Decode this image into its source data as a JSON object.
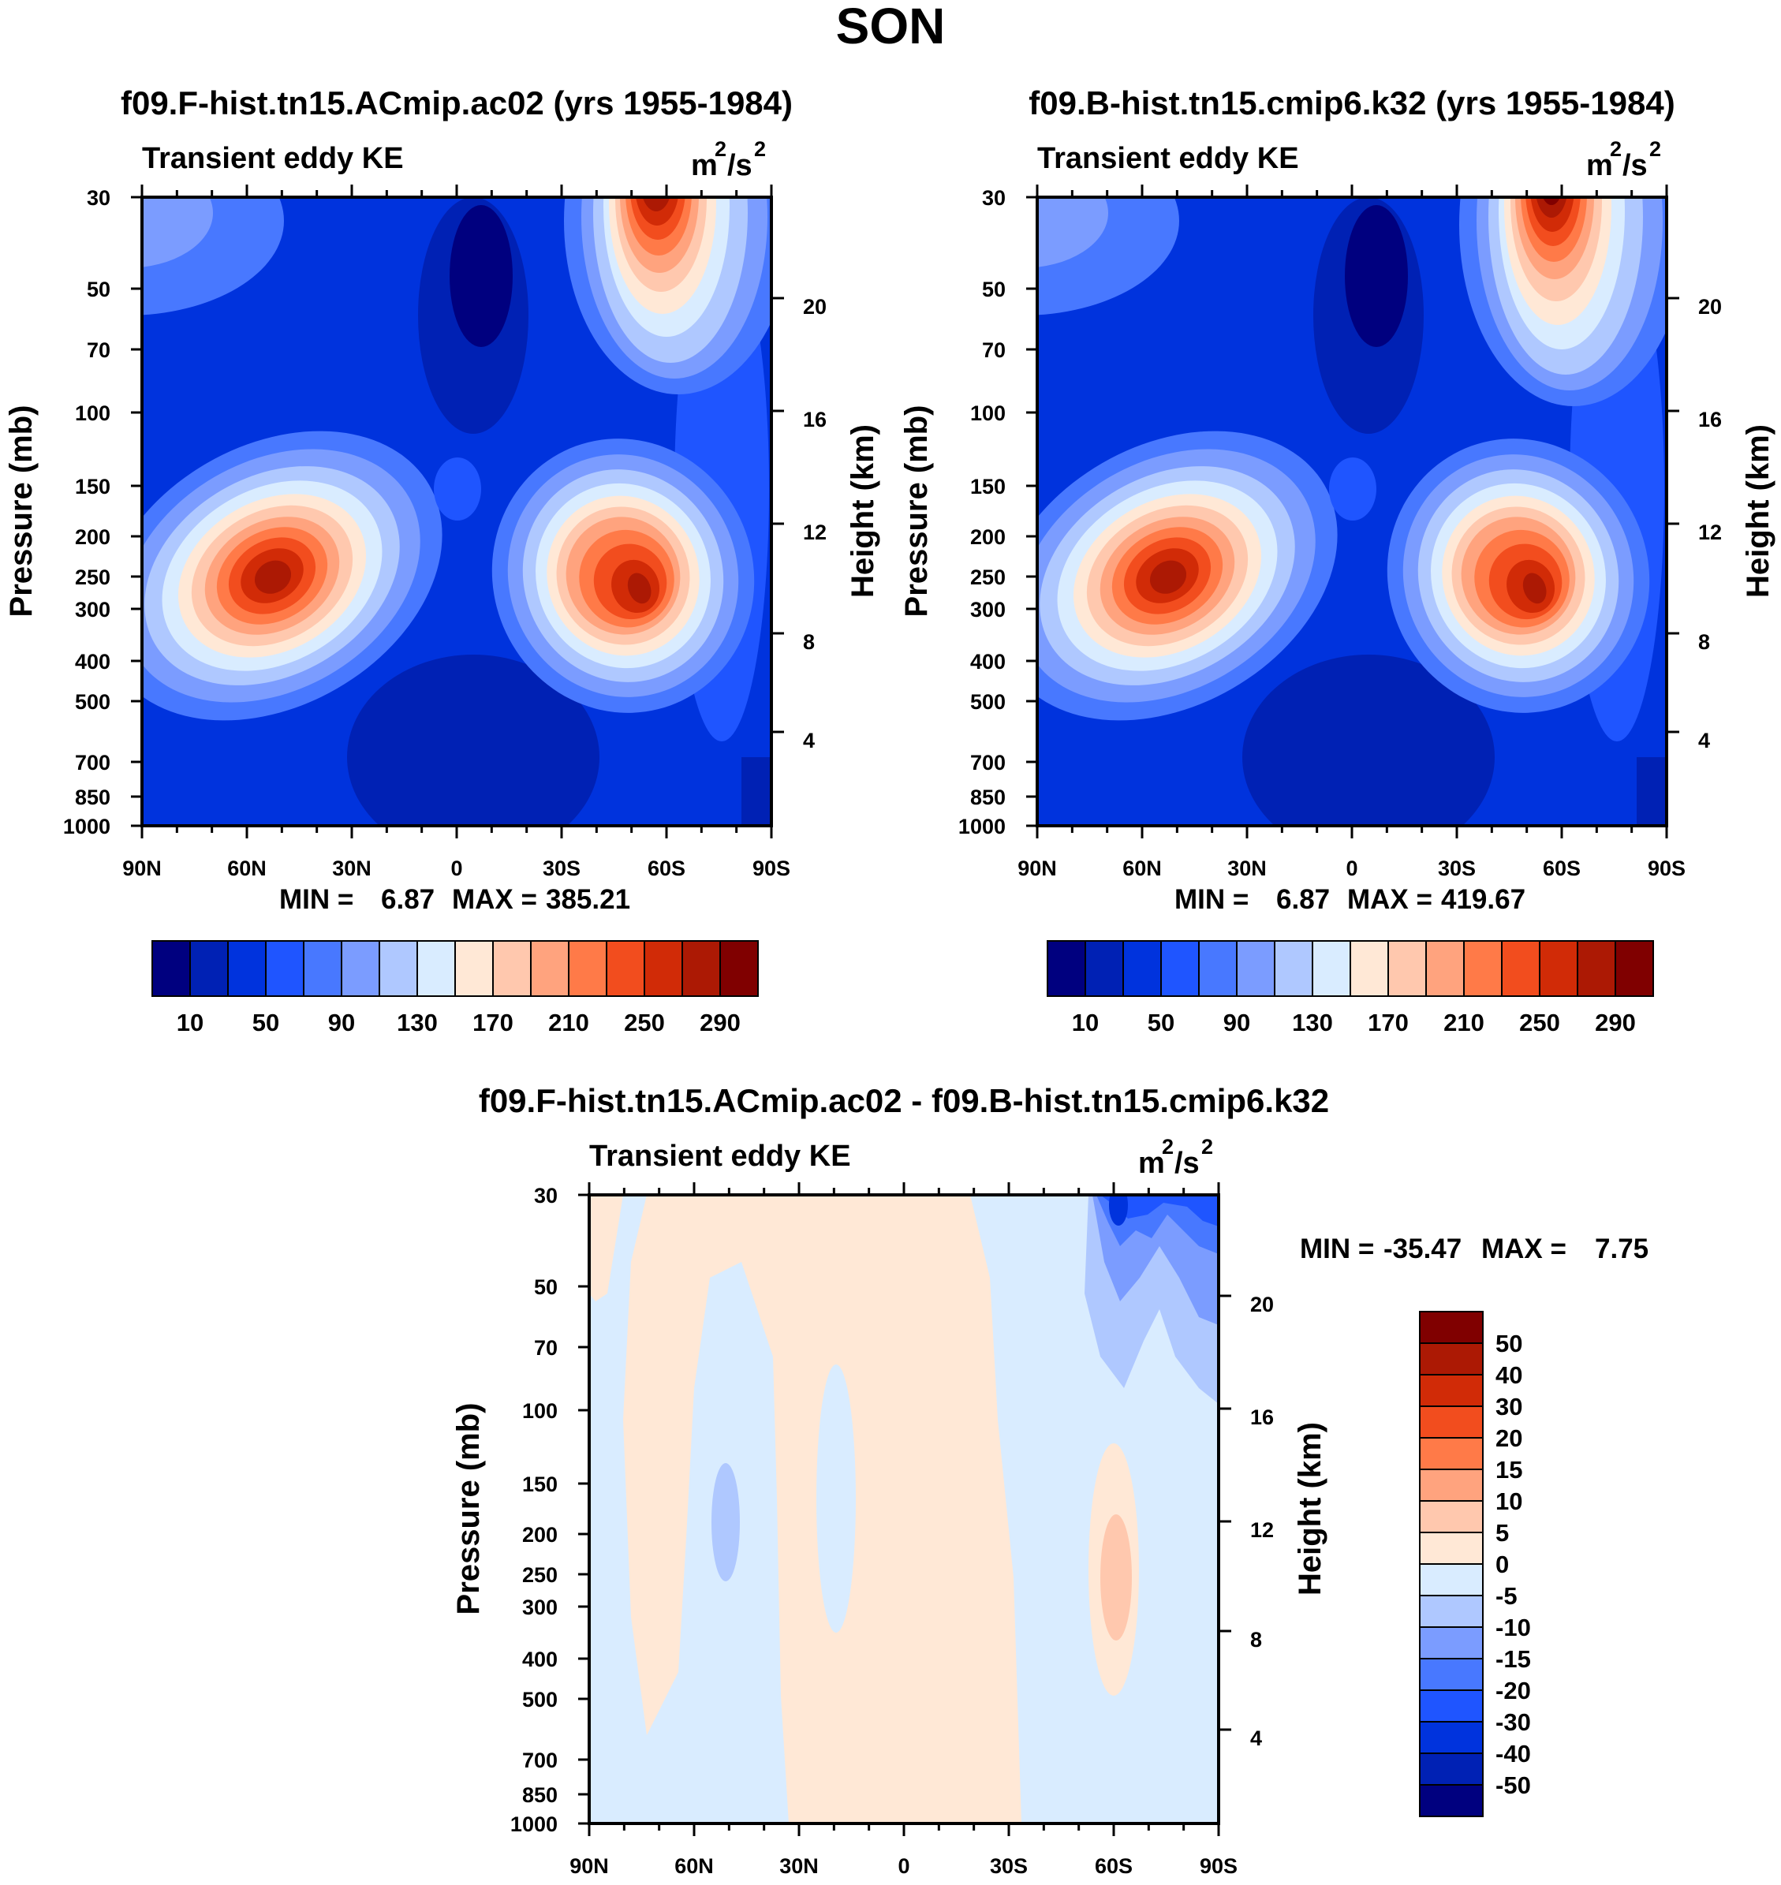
{
  "title": "SON",
  "chart_data": [
    {
      "id": "panel1",
      "type": "contour",
      "title": "f09.F-hist.tn15.ACmip.ac02 (yrs 1955-1984)",
      "left_label": "Transient eddy KE",
      "right_label": "m",
      "units_sup": "2",
      "units_mid": "/s",
      "ylabel": "Pressure (mb)",
      "y2label": "Height (km)",
      "x_ticks": [
        "90N",
        "60N",
        "30N",
        "0",
        "30S",
        "60S",
        "90S"
      ],
      "p_ticks": [
        "30",
        "50",
        "70",
        "100",
        "150",
        "200",
        "250",
        "300",
        "400",
        "500",
        "700",
        "850",
        "1000"
      ],
      "h_ticks": [
        "20",
        "16",
        "12",
        "8",
        "4"
      ],
      "min_label": "MIN =",
      "min_value": "6.87",
      "max_label": "MAX =",
      "max_value": "385.21",
      "colorbar_labels": [
        "10",
        "50",
        "90",
        "130",
        "170",
        "210",
        "250",
        "290"
      ],
      "features": [
        {
          "lat": 50,
          "p": 270,
          "peak": 340,
          "desc": "NH jet maximum"
        },
        {
          "lat": -48,
          "p": 290,
          "peak": 360,
          "desc": "SH jet maximum"
        },
        {
          "lat": -62,
          "p": 30,
          "peak": 385,
          "desc": "SH stratospheric maximum"
        }
      ]
    },
    {
      "id": "panel2",
      "type": "contour",
      "title": "f09.B-hist.tn15.cmip6.k32 (yrs 1955-1984)",
      "left_label": "Transient eddy KE",
      "right_label": "m",
      "units_sup": "2",
      "units_mid": "/s",
      "ylabel": "Pressure (mb)",
      "y2label": "Height (km)",
      "x_ticks": [
        "90N",
        "60N",
        "30N",
        "0",
        "30S",
        "60S",
        "90S"
      ],
      "p_ticks": [
        "30",
        "50",
        "70",
        "100",
        "150",
        "200",
        "250",
        "300",
        "400",
        "500",
        "700",
        "850",
        "1000"
      ],
      "h_ticks": [
        "20",
        "16",
        "12",
        "8",
        "4"
      ],
      "min_label": "MIN =",
      "min_value": "6.87",
      "max_label": "MAX =",
      "max_value": "419.67",
      "colorbar_labels": [
        "10",
        "50",
        "90",
        "130",
        "170",
        "210",
        "250",
        "290"
      ],
      "features": [
        {
          "lat": 50,
          "p": 270,
          "peak": 340,
          "desc": "NH jet maximum"
        },
        {
          "lat": -48,
          "p": 290,
          "peak": 370,
          "desc": "SH jet maximum"
        },
        {
          "lat": -62,
          "p": 30,
          "peak": 420,
          "desc": "SH stratospheric maximum"
        }
      ]
    },
    {
      "id": "panel3",
      "type": "contour",
      "title": "f09.F-hist.tn15.ACmip.ac02 - f09.B-hist.tn15.cmip6.k32",
      "left_label": "Transient eddy KE",
      "right_label": "m",
      "units_sup": "2",
      "units_mid": "/s",
      "ylabel": "Pressure (mb)",
      "y2label": "Height (km)",
      "x_ticks": [
        "90N",
        "60N",
        "30N",
        "0",
        "30S",
        "60S",
        "90S"
      ],
      "p_ticks": [
        "30",
        "50",
        "70",
        "100",
        "150",
        "200",
        "250",
        "300",
        "400",
        "500",
        "700",
        "850",
        "1000"
      ],
      "h_ticks": [
        "20",
        "16",
        "12",
        "8",
        "4"
      ],
      "min_label": "MIN =",
      "min_value": "-35.47",
      "max_label": "MAX =",
      "max_value": "7.75",
      "colorbar_labels": [
        "50",
        "40",
        "30",
        "20",
        "15",
        "10",
        "5",
        "0",
        "-5",
        "-10",
        "-15",
        "-20",
        "-30",
        "-40",
        "-50"
      ],
      "features": [
        {
          "lat": -60,
          "p": 250,
          "peak": 7,
          "desc": "positive difference near 60S"
        },
        {
          "lat": -62,
          "p": 30,
          "peak": -35,
          "desc": "negative difference upper 60S"
        }
      ]
    }
  ],
  "palette": [
    "#00007f",
    "#0021b4",
    "#0033dd",
    "#1f55ff",
    "#4878ff",
    "#7b9cff",
    "#afc8ff",
    "#d9ecff",
    "#ffe8d6",
    "#ffc8ae",
    "#ffa37e",
    "#ff7a48",
    "#f24d1e",
    "#d12b07",
    "#ac1904",
    "#800000"
  ]
}
